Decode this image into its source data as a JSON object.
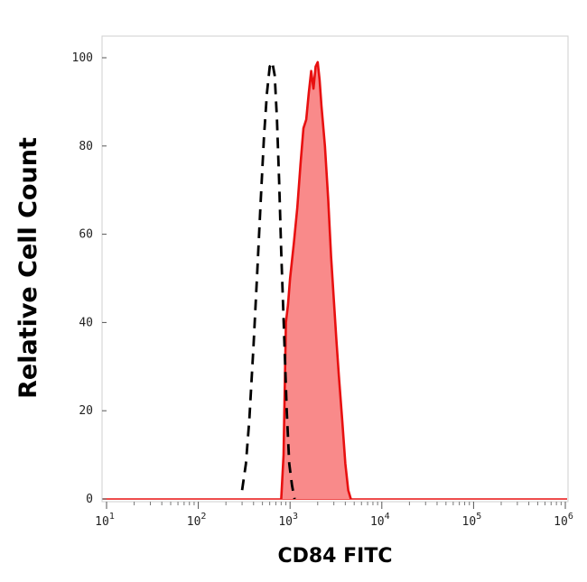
{
  "chart_data": {
    "type": "area",
    "xlabel": "CD84 FITC",
    "ylabel": "Relative Cell Count",
    "xscale": "log",
    "xlim": [
      10,
      1000000
    ],
    "ylim": [
      0,
      100
    ],
    "grid": false,
    "x_ticks": [
      {
        "base": "10",
        "exp": "1"
      },
      {
        "base": "10",
        "exp": "2"
      },
      {
        "base": "10",
        "exp": "3"
      },
      {
        "base": "10",
        "exp": "4"
      },
      {
        "base": "10",
        "exp": "5"
      },
      {
        "base": "10",
        "exp": "6"
      }
    ],
    "y_ticks": [
      "0",
      "20",
      "40",
      "60",
      "80",
      "100"
    ],
    "series": [
      {
        "style": "dashed",
        "color": "#000000",
        "x": [
          300,
          330,
          360,
          400,
          440,
          480,
          520,
          560,
          600,
          640,
          680,
          720,
          760,
          800,
          860,
          920,
          980,
          1050,
          1120
        ],
        "y": [
          2,
          8,
          18,
          35,
          52,
          68,
          82,
          92,
          98,
          99,
          96,
          86,
          72,
          56,
          38,
          20,
          8,
          3,
          0
        ]
      },
      {
        "style": "filled",
        "color": "#e81010",
        "fill": "#f98a8a",
        "x": [
          800,
          850,
          900,
          950,
          1000,
          1100,
          1200,
          1300,
          1400,
          1500,
          1600,
          1700,
          1800,
          1900,
          2000,
          2100,
          2200,
          2400,
          2600,
          2800,
          3000,
          3200,
          3400,
          3700,
          4000,
          4300,
          4600
        ],
        "y": [
          0,
          10,
          40,
          44,
          50,
          58,
          66,
          76,
          84,
          86,
          92,
          97,
          93,
          98,
          99,
          95,
          89,
          80,
          68,
          55,
          45,
          36,
          28,
          18,
          8,
          2,
          0
        ]
      }
    ]
  }
}
